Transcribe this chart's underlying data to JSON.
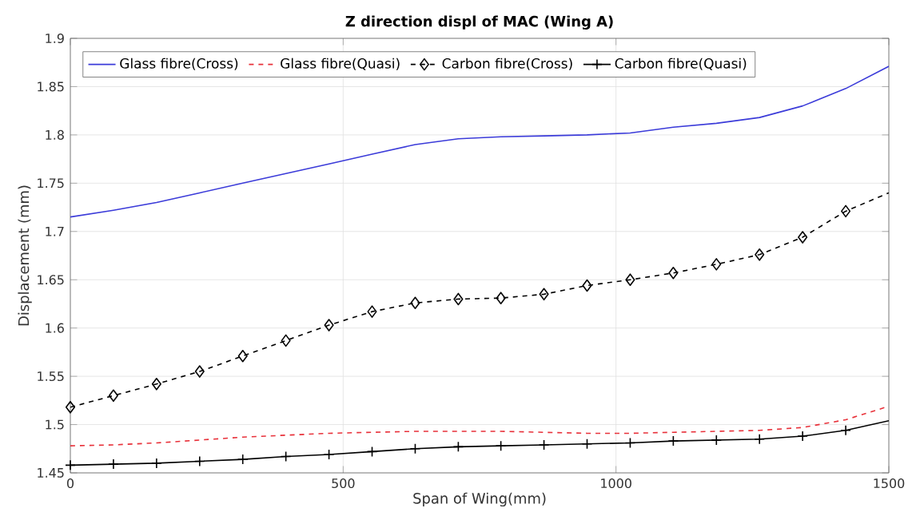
{
  "chart_data": {
    "type": "line",
    "title": "Z direction displ of MAC (Wing A)",
    "xlabel": "Span of Wing(mm)",
    "ylabel": "Displacement (mm)",
    "x": [
      0,
      79,
      158,
      237,
      316,
      395,
      474,
      553,
      632,
      711,
      789,
      868,
      947,
      1026,
      1105,
      1184,
      1263,
      1342,
      1421,
      1500
    ],
    "series": [
      {
        "name": "Glass fibre(Cross)",
        "color": "#3b3bd9",
        "line_style": "solid",
        "marker": "none",
        "values": [
          1.715,
          1.722,
          1.73,
          1.74,
          1.75,
          1.76,
          1.77,
          1.78,
          1.79,
          1.796,
          1.798,
          1.799,
          1.8,
          1.802,
          1.808,
          1.812,
          1.818,
          1.83,
          1.848,
          1.871
        ]
      },
      {
        "name": "Glass fibre(Quasi)",
        "color": "#e8313a",
        "line_style": "dashed",
        "marker": "none",
        "values": [
          1.478,
          1.479,
          1.481,
          1.484,
          1.487,
          1.489,
          1.491,
          1.492,
          1.493,
          1.493,
          1.493,
          1.492,
          1.491,
          1.491,
          1.492,
          1.493,
          1.494,
          1.497,
          1.505,
          1.519
        ]
      },
      {
        "name": "Carbon fibre(Cross)",
        "color": "#000000",
        "line_style": "dashed",
        "marker": "diamond",
        "values": [
          1.518,
          1.53,
          1.542,
          1.555,
          1.571,
          1.587,
          1.603,
          1.617,
          1.626,
          1.63,
          1.631,
          1.635,
          1.644,
          1.65,
          1.657,
          1.666,
          1.676,
          1.694,
          1.721,
          1.74
        ]
      },
      {
        "name": "Carbon fibre(Quasi)",
        "color": "#000000",
        "line_style": "solid",
        "marker": "cross",
        "values": [
          1.458,
          1.459,
          1.46,
          1.462,
          1.464,
          1.467,
          1.469,
          1.472,
          1.475,
          1.477,
          1.478,
          1.479,
          1.48,
          1.481,
          1.483,
          1.484,
          1.485,
          1.488,
          1.494,
          1.504
        ]
      }
    ],
    "xlim": [
      0,
      1500
    ],
    "xticks": [
      0,
      500,
      1000,
      1500
    ],
    "ylim": [
      1.45,
      1.9
    ],
    "yticks": [
      1.45,
      1.5,
      1.55,
      1.6,
      1.65,
      1.7,
      1.75,
      1.8,
      1.85,
      1.9
    ],
    "grid": true,
    "legend": "top left"
  }
}
